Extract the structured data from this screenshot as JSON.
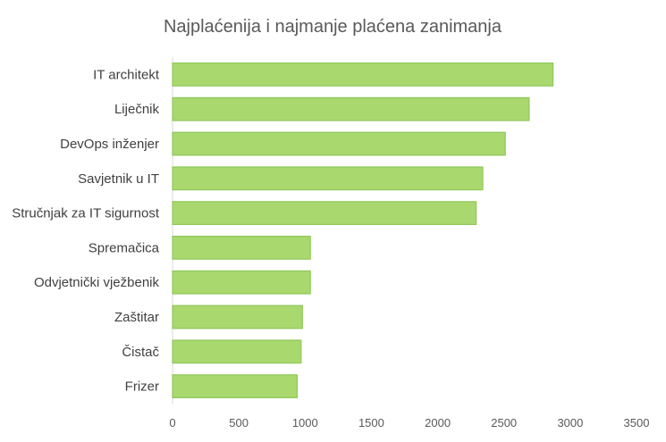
{
  "chart_data": {
    "type": "bar",
    "orientation": "horizontal",
    "title": "Najplaćenija i najmanje plaćena zanimanja",
    "xlabel": "",
    "ylabel": "",
    "categories": [
      "IT architekt",
      "Liječnik",
      "DevOps inženjer",
      "Savjetnik u IT",
      "Stručnjak za IT sigurnost",
      "Spremačica",
      "Odvjetnički vježbenik",
      "Zaštitar",
      "Čistač",
      "Frizer"
    ],
    "values": [
      2870,
      2690,
      2510,
      2340,
      2290,
      1040,
      1040,
      980,
      970,
      940
    ],
    "xlim": [
      0,
      3500
    ],
    "xticks": [
      "0",
      "500",
      "1000",
      "1500",
      "2000",
      "2500",
      "3000",
      "3500"
    ],
    "grid": false,
    "legend": "none",
    "colors": {
      "bar_fill": "#a9d86e",
      "bar_stroke": "#8fc85a"
    }
  }
}
